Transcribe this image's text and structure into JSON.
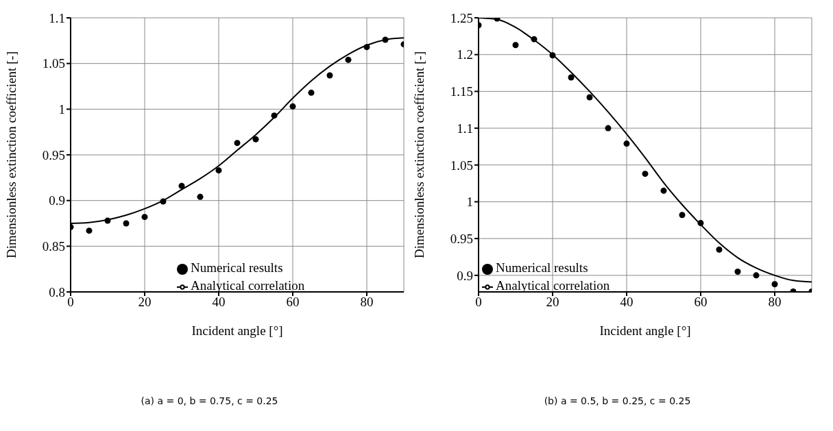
{
  "chart_data": [
    {
      "type": "scatter",
      "xlabel": "Incident angle [°]",
      "ylabel": "Dimensionless extinction coefficient [-]",
      "annotations": [
        "(a) a = 0, b = 0.75, c = 0.25"
      ],
      "x": [
        0,
        5,
        10,
        15,
        20,
        25,
        30,
        35,
        40,
        45,
        50,
        55,
        60,
        65,
        70,
        75,
        80,
        85,
        90
      ],
      "xlim": [
        0,
        90
      ],
      "xticks": [
        0,
        20,
        40,
        60,
        80
      ],
      "ylim": [
        0.8,
        1.1
      ],
      "yticks": [
        0.8,
        0.85,
        0.9,
        0.95,
        1,
        1.05,
        1.1
      ],
      "grid": true,
      "legend": "bottom right",
      "series": [
        {
          "name": "Numerical results",
          "marker": "circle",
          "color": "#000000",
          "values": [
            0.871,
            0.867,
            0.878,
            0.875,
            0.882,
            0.899,
            0.916,
            0.904,
            0.933,
            0.963,
            0.967,
            0.993,
            1.003,
            1.018,
            1.037,
            1.054,
            1.068,
            1.076,
            1.071
          ]
        },
        {
          "name": "Analytical correlation",
          "type": "line",
          "marker": "none",
          "line_style": "solid",
          "color": "#000000",
          "values": [
            0.875,
            0.876,
            0.879,
            0.884,
            0.891,
            0.9,
            0.912,
            0.924,
            0.938,
            0.955,
            0.972,
            0.991,
            1.012,
            1.031,
            1.047,
            1.06,
            1.07,
            1.076,
            1.078
          ]
        }
      ]
    },
    {
      "type": "scatter",
      "xlabel": "Incident angle [°]",
      "ylabel": "Dimensionless extinction coefficient [-]",
      "annotations": [
        "(b) a = 0.5, b = 0.25, c = 0.25"
      ],
      "x": [
        0,
        5,
        10,
        15,
        20,
        25,
        30,
        35,
        40,
        45,
        50,
        55,
        60,
        65,
        70,
        75,
        80,
        85,
        90
      ],
      "xlim": [
        0,
        90
      ],
      "xticks": [
        0,
        20,
        40,
        60,
        80
      ],
      "ylim": [
        0.8775,
        1.25
      ],
      "yticks": [
        0.9,
        0.95,
        1,
        1.05,
        1.1,
        1.15,
        1.2,
        1.25
      ],
      "grid": true,
      "legend": "bottom",
      "series": [
        {
          "name": "Numerical results",
          "marker": "circle",
          "color": "#000000",
          "values": [
            1.24,
            1.249,
            1.213,
            1.221,
            1.199,
            1.169,
            1.142,
            1.1,
            1.079,
            1.038,
            1.015,
            0.982,
            0.971,
            0.935,
            0.905,
            0.9,
            0.888,
            0.878,
            0.878
          ]
        },
        {
          "name": "Analytical correlation",
          "type": "line",
          "marker": "none",
          "line_style": "solid",
          "color": "#000000",
          "values": [
            1.25,
            1.248,
            1.237,
            1.22,
            1.2,
            1.176,
            1.15,
            1.122,
            1.092,
            1.06,
            1.026,
            0.996,
            0.969,
            0.944,
            0.924,
            0.91,
            0.9,
            0.893,
            0.891
          ]
        }
      ]
    }
  ]
}
